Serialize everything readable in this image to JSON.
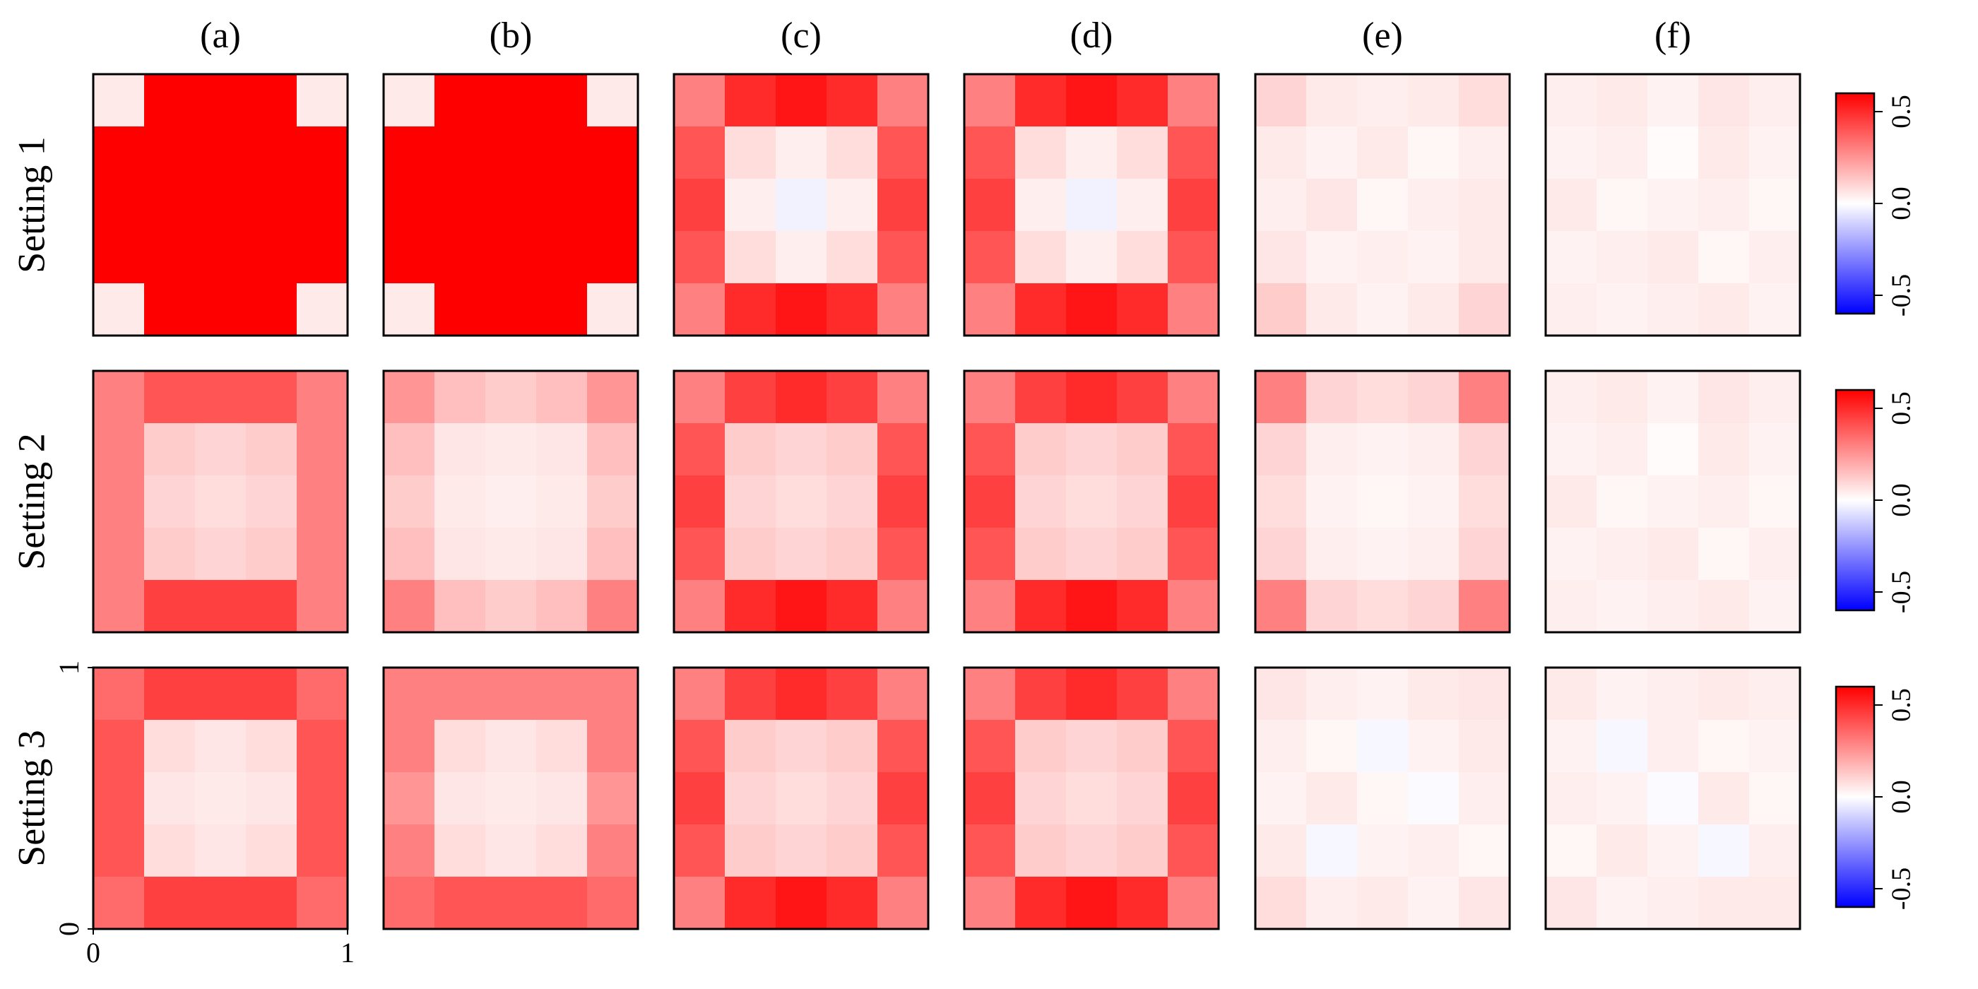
{
  "column_labels": [
    "(a)",
    "(b)",
    "(c)",
    "(d)",
    "(e)",
    "(f)"
  ],
  "row_labels": [
    "Setting 1",
    "Setting 2",
    "Setting 3"
  ],
  "colorbar": {
    "zlim": [
      -0.6,
      0.6
    ],
    "colors": [
      "#0000ff",
      "#ffffff",
      "#ff0000"
    ],
    "ticks": [
      -0.5,
      {
        "value": 0,
        "label": "0.0"
      },
      0.5
    ]
  },
  "chart_data": [
    {
      "type": "heatmap",
      "xlim": [
        0,
        1
      ],
      "ylim": [
        0,
        1
      ],
      "z": [
        [
          0.05,
          0.6,
          0.6,
          0.6,
          0.05
        ],
        [
          0.6,
          0.6,
          0.6,
          0.6,
          0.6
        ],
        [
          0.6,
          0.6,
          0.6,
          0.6,
          0.6
        ],
        [
          0.6,
          0.6,
          0.6,
          0.6,
          0.6
        ],
        [
          0.05,
          0.6,
          0.6,
          0.6,
          0.05
        ]
      ]
    },
    {
      "type": "heatmap",
      "xlim": [
        0,
        1
      ],
      "ylim": [
        0,
        1
      ],
      "z": [
        [
          0.05,
          0.6,
          0.6,
          0.6,
          0.05
        ],
        [
          0.6,
          0.6,
          0.6,
          0.6,
          0.6
        ],
        [
          0.6,
          0.6,
          0.6,
          0.6,
          0.6
        ],
        [
          0.6,
          0.6,
          0.6,
          0.6,
          0.6
        ],
        [
          0.05,
          0.6,
          0.6,
          0.6,
          0.05
        ]
      ]
    },
    {
      "type": "heatmap",
      "xlim": [
        0,
        1
      ],
      "ylim": [
        0,
        1
      ],
      "z": [
        [
          0.3,
          0.5,
          0.55,
          0.5,
          0.3
        ],
        [
          0.4,
          0.08,
          0.04,
          0.08,
          0.4
        ],
        [
          0.45,
          0.04,
          -0.03,
          0.04,
          0.45
        ],
        [
          0.4,
          0.08,
          0.04,
          0.08,
          0.4
        ],
        [
          0.3,
          0.5,
          0.55,
          0.5,
          0.3
        ]
      ]
    },
    {
      "type": "heatmap",
      "xlim": [
        0,
        1
      ],
      "ylim": [
        0,
        1
      ],
      "z": [
        [
          0.3,
          0.5,
          0.55,
          0.5,
          0.3
        ],
        [
          0.4,
          0.08,
          0.04,
          0.08,
          0.4
        ],
        [
          0.45,
          0.04,
          -0.03,
          0.04,
          0.45
        ],
        [
          0.4,
          0.08,
          0.04,
          0.08,
          0.4
        ],
        [
          0.3,
          0.5,
          0.55,
          0.5,
          0.3
        ]
      ]
    },
    {
      "type": "heatmap",
      "xlim": [
        0,
        1
      ],
      "ylim": [
        0,
        1
      ],
      "z": [
        [
          0.1,
          0.05,
          0.04,
          0.05,
          0.08
        ],
        [
          0.05,
          0.03,
          0.05,
          0.02,
          0.04
        ],
        [
          0.04,
          0.06,
          0.02,
          0.04,
          0.05
        ],
        [
          0.06,
          0.03,
          0.04,
          0.03,
          0.05
        ],
        [
          0.12,
          0.05,
          0.03,
          0.05,
          0.1
        ]
      ]
    },
    {
      "type": "heatmap",
      "xlim": [
        0,
        1
      ],
      "ylim": [
        0,
        1
      ],
      "z": [
        [
          0.04,
          0.05,
          0.03,
          0.06,
          0.04
        ],
        [
          0.03,
          0.04,
          0.01,
          0.05,
          0.03
        ],
        [
          0.05,
          0.02,
          0.03,
          0.04,
          0.02
        ],
        [
          0.03,
          0.04,
          0.05,
          0.02,
          0.04
        ],
        [
          0.04,
          0.03,
          0.04,
          0.05,
          0.03
        ]
      ]
    },
    {
      "type": "heatmap",
      "xlim": [
        0,
        1
      ],
      "ylim": [
        0,
        1
      ],
      "z": [
        [
          0.3,
          0.4,
          0.4,
          0.4,
          0.3
        ],
        [
          0.3,
          0.12,
          0.1,
          0.12,
          0.3
        ],
        [
          0.3,
          0.1,
          0.08,
          0.1,
          0.3
        ],
        [
          0.3,
          0.12,
          0.1,
          0.12,
          0.3
        ],
        [
          0.3,
          0.45,
          0.45,
          0.45,
          0.3
        ]
      ]
    },
    {
      "type": "heatmap",
      "xlim": [
        0,
        1
      ],
      "ylim": [
        0,
        1
      ],
      "z": [
        [
          0.25,
          0.15,
          0.12,
          0.15,
          0.25
        ],
        [
          0.15,
          0.06,
          0.05,
          0.06,
          0.15
        ],
        [
          0.12,
          0.05,
          0.04,
          0.05,
          0.12
        ],
        [
          0.15,
          0.06,
          0.05,
          0.06,
          0.15
        ],
        [
          0.3,
          0.15,
          0.12,
          0.15,
          0.3
        ]
      ]
    },
    {
      "type": "heatmap",
      "xlim": [
        0,
        1
      ],
      "ylim": [
        0,
        1
      ],
      "z": [
        [
          0.3,
          0.45,
          0.5,
          0.45,
          0.3
        ],
        [
          0.4,
          0.12,
          0.1,
          0.12,
          0.4
        ],
        [
          0.45,
          0.1,
          0.08,
          0.1,
          0.45
        ],
        [
          0.4,
          0.12,
          0.1,
          0.12,
          0.4
        ],
        [
          0.3,
          0.5,
          0.55,
          0.5,
          0.3
        ]
      ]
    },
    {
      "type": "heatmap",
      "xlim": [
        0,
        1
      ],
      "ylim": [
        0,
        1
      ],
      "z": [
        [
          0.3,
          0.45,
          0.5,
          0.45,
          0.3
        ],
        [
          0.4,
          0.12,
          0.1,
          0.12,
          0.4
        ],
        [
          0.45,
          0.1,
          0.08,
          0.1,
          0.45
        ],
        [
          0.4,
          0.12,
          0.1,
          0.12,
          0.4
        ],
        [
          0.3,
          0.5,
          0.55,
          0.5,
          0.3
        ]
      ]
    },
    {
      "type": "heatmap",
      "xlim": [
        0,
        1
      ],
      "ylim": [
        0,
        1
      ],
      "z": [
        [
          0.3,
          0.1,
          0.08,
          0.1,
          0.3
        ],
        [
          0.1,
          0.04,
          0.03,
          0.04,
          0.1
        ],
        [
          0.08,
          0.03,
          0.02,
          0.03,
          0.08
        ],
        [
          0.1,
          0.04,
          0.03,
          0.04,
          0.1
        ],
        [
          0.3,
          0.1,
          0.08,
          0.1,
          0.3
        ]
      ]
    },
    {
      "type": "heatmap",
      "xlim": [
        0,
        1
      ],
      "ylim": [
        0,
        1
      ],
      "z": [
        [
          0.04,
          0.05,
          0.03,
          0.06,
          0.04
        ],
        [
          0.03,
          0.04,
          0.01,
          0.05,
          0.03
        ],
        [
          0.05,
          0.02,
          0.03,
          0.04,
          0.02
        ],
        [
          0.03,
          0.04,
          0.05,
          0.02,
          0.04
        ],
        [
          0.04,
          0.03,
          0.04,
          0.05,
          0.03
        ]
      ]
    },
    {
      "type": "heatmap",
      "xlim": [
        0,
        1
      ],
      "ylim": [
        0,
        1
      ],
      "xticks": [
        0,
        1
      ],
      "yticks": [
        0,
        1
      ],
      "z": [
        [
          0.35,
          0.45,
          0.45,
          0.45,
          0.35
        ],
        [
          0.4,
          0.08,
          0.06,
          0.08,
          0.4
        ],
        [
          0.4,
          0.06,
          0.05,
          0.06,
          0.4
        ],
        [
          0.4,
          0.08,
          0.06,
          0.08,
          0.4
        ],
        [
          0.35,
          0.45,
          0.45,
          0.45,
          0.35
        ]
      ]
    },
    {
      "type": "heatmap",
      "xlim": [
        0,
        1
      ],
      "ylim": [
        0,
        1
      ],
      "z": [
        [
          0.3,
          0.3,
          0.3,
          0.3,
          0.3
        ],
        [
          0.3,
          0.08,
          0.06,
          0.08,
          0.3
        ],
        [
          0.25,
          0.06,
          0.05,
          0.06,
          0.25
        ],
        [
          0.3,
          0.08,
          0.06,
          0.08,
          0.3
        ],
        [
          0.35,
          0.4,
          0.4,
          0.4,
          0.35
        ]
      ]
    },
    {
      "type": "heatmap",
      "xlim": [
        0,
        1
      ],
      "ylim": [
        0,
        1
      ],
      "z": [
        [
          0.3,
          0.45,
          0.5,
          0.45,
          0.3
        ],
        [
          0.4,
          0.12,
          0.1,
          0.12,
          0.4
        ],
        [
          0.45,
          0.1,
          0.08,
          0.1,
          0.45
        ],
        [
          0.4,
          0.12,
          0.1,
          0.12,
          0.4
        ],
        [
          0.3,
          0.5,
          0.55,
          0.5,
          0.3
        ]
      ]
    },
    {
      "type": "heatmap",
      "xlim": [
        0,
        1
      ],
      "ylim": [
        0,
        1
      ],
      "z": [
        [
          0.3,
          0.45,
          0.5,
          0.45,
          0.3
        ],
        [
          0.4,
          0.12,
          0.1,
          0.12,
          0.4
        ],
        [
          0.45,
          0.1,
          0.08,
          0.1,
          0.45
        ],
        [
          0.4,
          0.12,
          0.1,
          0.12,
          0.4
        ],
        [
          0.3,
          0.5,
          0.55,
          0.5,
          0.3
        ]
      ]
    },
    {
      "type": "heatmap",
      "xlim": [
        0,
        1
      ],
      "ylim": [
        0,
        1
      ],
      "z": [
        [
          0.06,
          0.04,
          0.03,
          0.05,
          0.06
        ],
        [
          0.04,
          0.02,
          -0.02,
          0.03,
          0.05
        ],
        [
          0.03,
          0.05,
          0.02,
          -0.01,
          0.04
        ],
        [
          0.05,
          -0.02,
          0.03,
          0.04,
          0.02
        ],
        [
          0.08,
          0.04,
          0.05,
          0.03,
          0.06
        ]
      ]
    },
    {
      "type": "heatmap",
      "xlim": [
        0,
        1
      ],
      "ylim": [
        0,
        1
      ],
      "z": [
        [
          0.05,
          0.03,
          0.04,
          0.05,
          0.04
        ],
        [
          0.03,
          -0.02,
          0.04,
          0.02,
          0.03
        ],
        [
          0.04,
          0.03,
          -0.01,
          0.05,
          0.02
        ],
        [
          0.02,
          0.05,
          0.03,
          -0.02,
          0.04
        ],
        [
          0.06,
          0.03,
          0.04,
          0.05,
          0.05
        ]
      ]
    }
  ]
}
